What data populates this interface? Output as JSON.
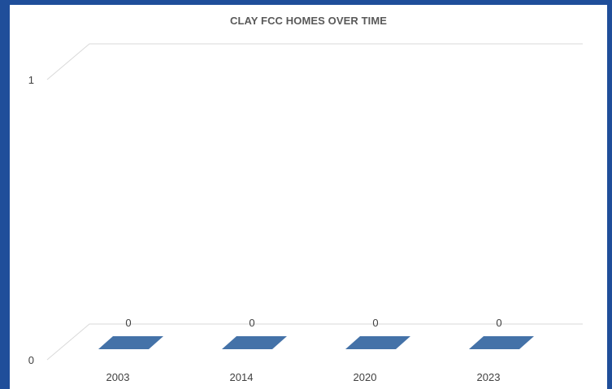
{
  "chart_data": {
    "type": "bar",
    "title": "CLAY FCC HOMES OVER TIME",
    "categories": [
      "2003",
      "2014",
      "2020",
      "2023"
    ],
    "values": [
      0,
      0,
      0,
      0
    ],
    "data_labels": [
      "0",
      "0",
      "0",
      "0"
    ],
    "ylim": [
      0,
      1
    ],
    "yticks": [
      "0",
      "1"
    ],
    "xlabel": "",
    "ylabel": "",
    "grid": true,
    "style": "3d-column",
    "bar_color": "#4472a8",
    "background_color": "#1f4e9a"
  }
}
